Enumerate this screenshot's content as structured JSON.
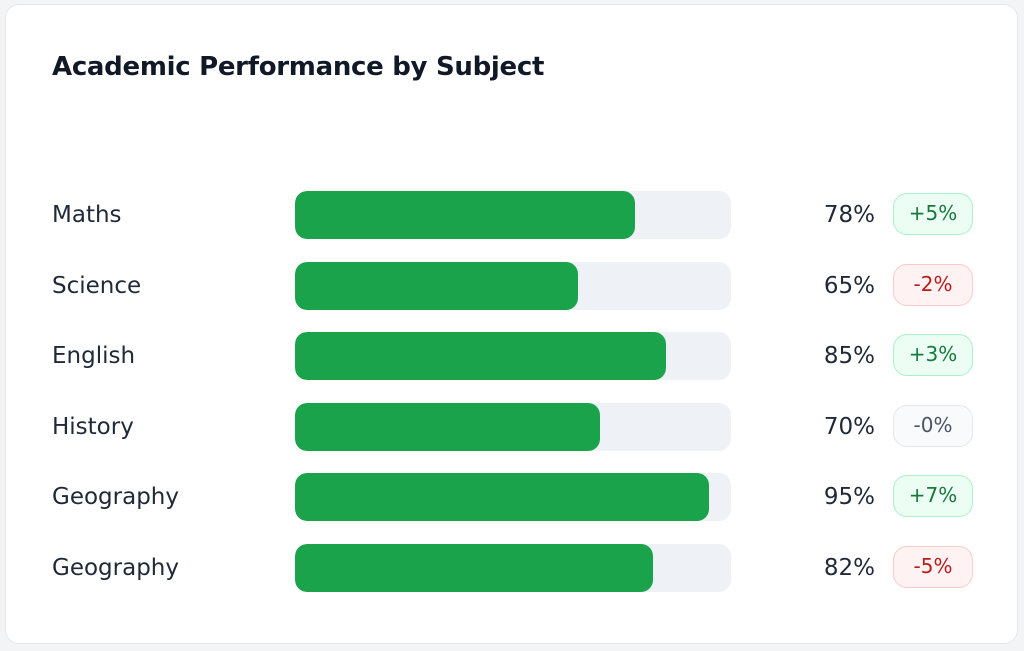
{
  "colors": {
    "bar_fill": "#1aa34a",
    "bar_track": "#eef2f7",
    "positive": "#167a3d",
    "negative": "#b91c1c",
    "neutral": "#4b5563"
  },
  "chart_data": {
    "type": "bar",
    "orientation": "horizontal",
    "title": "Academic Performance by Subject",
    "xlim": [
      0,
      100
    ],
    "grid": false,
    "legend": "none",
    "categories": [
      "Maths",
      "Science",
      "English",
      "History",
      "Geography",
      "Geography"
    ],
    "values": [
      78,
      65,
      85,
      70,
      95,
      82
    ],
    "value_labels": [
      "78%",
      "65%",
      "85%",
      "70%",
      "95%",
      "82%"
    ],
    "changes": [
      "+5%",
      "-2%",
      "+3%",
      "-0%",
      "+7%",
      "-5%"
    ],
    "change_trend": [
      "up",
      "down",
      "up",
      "flat",
      "up",
      "down"
    ]
  }
}
